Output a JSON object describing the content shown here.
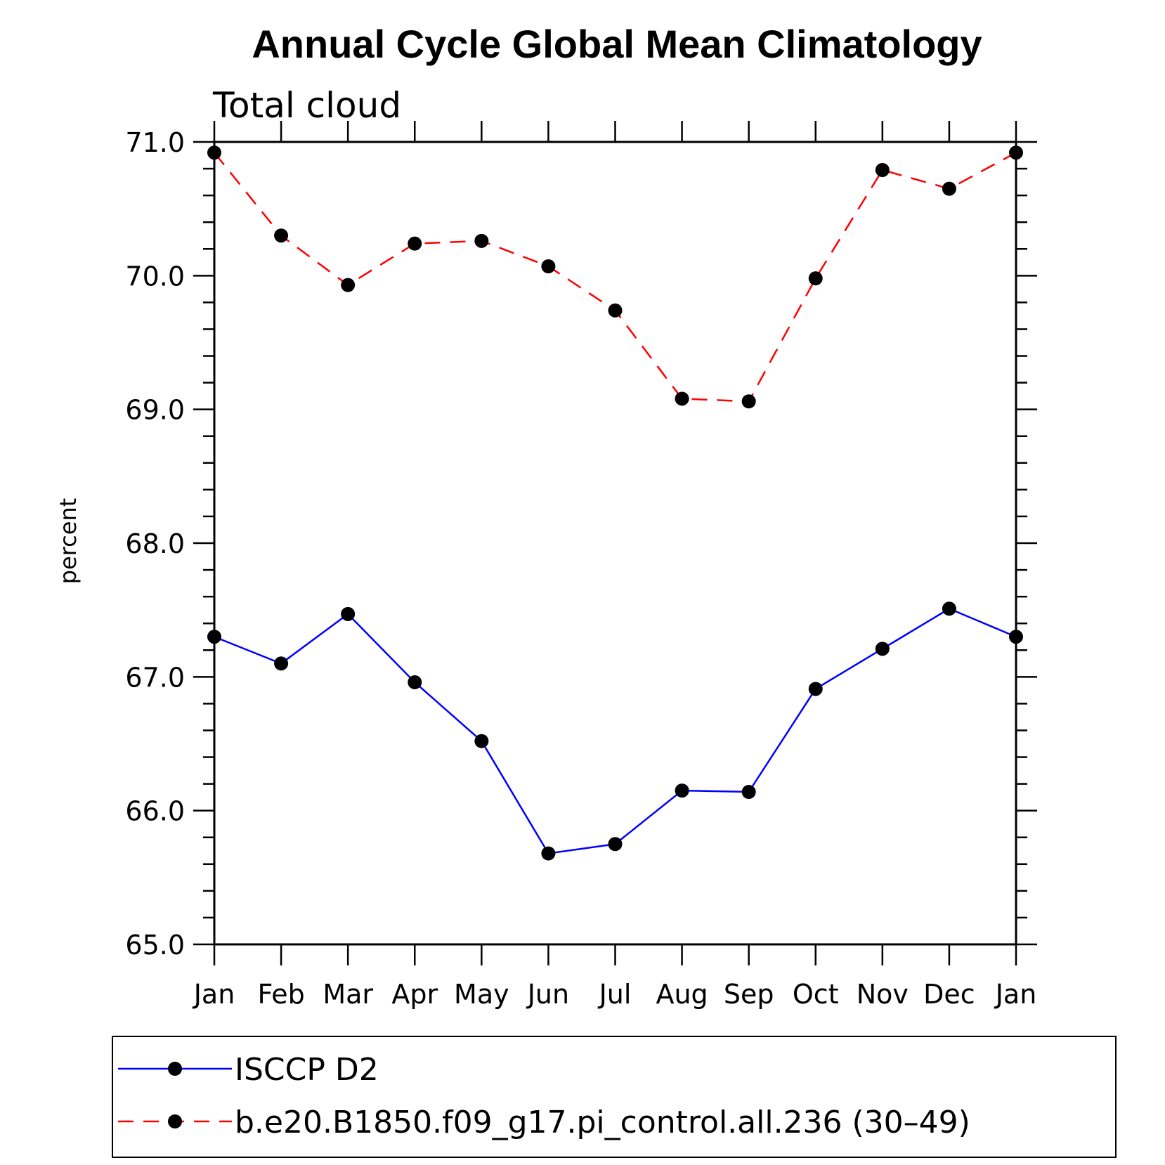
{
  "chart_data": {
    "type": "line",
    "title": "Annual Cycle Global Mean Climatology",
    "subtitle": "Total cloud",
    "ylabel": "percent",
    "xlabel": "",
    "categories": [
      "Jan",
      "Feb",
      "Mar",
      "Apr",
      "May",
      "Jun",
      "Jul",
      "Aug",
      "Sep",
      "Oct",
      "Nov",
      "Dec",
      "Jan"
    ],
    "ylim": [
      65.0,
      71.0
    ],
    "yticks": [
      "65.0",
      "66.0",
      "67.0",
      "68.0",
      "69.0",
      "70.0",
      "71.0"
    ],
    "grid": false,
    "legend_position": "bottom",
    "series": [
      {
        "name": "ISCCP D2",
        "color": "#0000ff",
        "line_style": "solid",
        "values": [
          67.3,
          67.1,
          67.47,
          66.96,
          66.52,
          65.68,
          65.75,
          66.15,
          66.14,
          66.91,
          67.21,
          67.51,
          67.3
        ]
      },
      {
        "name": "b.e20.B1850.f09_g17.pi_control.all.236 (30–49)",
        "color": "#ff0000",
        "line_style": "dashed",
        "values": [
          70.92,
          70.3,
          69.93,
          70.24,
          70.26,
          70.07,
          69.74,
          69.08,
          69.06,
          69.98,
          70.79,
          70.65,
          70.92
        ]
      }
    ]
  }
}
